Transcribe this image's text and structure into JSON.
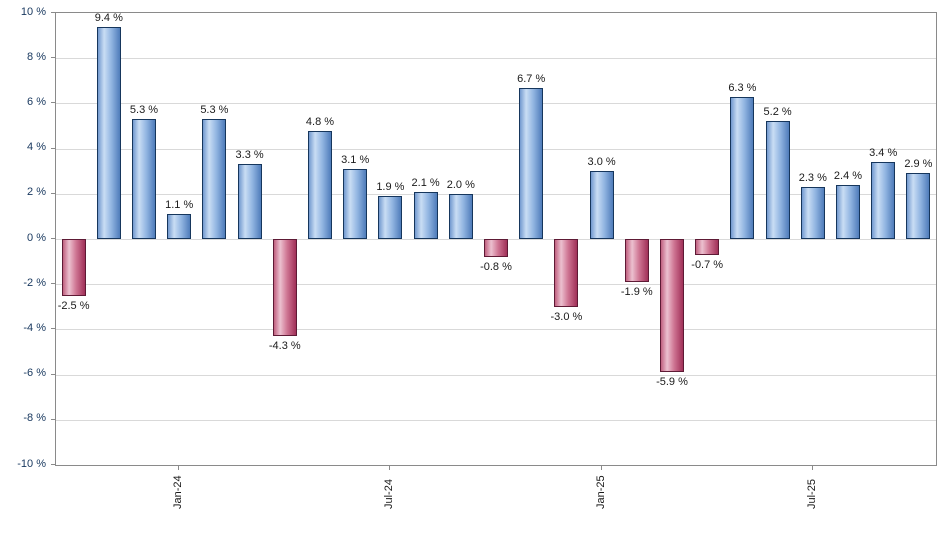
{
  "chart_data": {
    "type": "bar",
    "title": "",
    "xlabel": "",
    "ylabel": "",
    "grid": true,
    "legend": false,
    "y_axis": {
      "min": -10,
      "max": 10,
      "step": 2,
      "tick_labels": [
        "10 %",
        "8 %",
        "6 %",
        "4 %",
        "2 %",
        "0 %",
        "-2 %",
        "-4 %",
        "-6 %",
        "-8 %",
        "-10 %"
      ]
    },
    "x_axis": {
      "tick_labels": [
        {
          "bar_index": 3,
          "label": "Jan-24"
        },
        {
          "bar_index": 9,
          "label": "Jul-24"
        },
        {
          "bar_index": 15,
          "label": "Jan-25"
        },
        {
          "bar_index": 21,
          "label": "Jul-25"
        }
      ]
    },
    "bars": [
      {
        "value": -2.5,
        "label": "-2.5 %"
      },
      {
        "value": 9.4,
        "label": "9.4 %"
      },
      {
        "value": 5.3,
        "label": "5.3 %"
      },
      {
        "value": 1.1,
        "label": "1.1 %"
      },
      {
        "value": 5.3,
        "label": "5.3 %"
      },
      {
        "value": 3.3,
        "label": "3.3 %"
      },
      {
        "value": -4.3,
        "label": "-4.3 %"
      },
      {
        "value": 4.8,
        "label": "4.8 %"
      },
      {
        "value": 3.1,
        "label": "3.1 %"
      },
      {
        "value": 1.9,
        "label": "1.9 %"
      },
      {
        "value": 2.1,
        "label": "2.1 %"
      },
      {
        "value": 2.0,
        "label": "2.0 %"
      },
      {
        "value": -0.8,
        "label": "-0.8 %"
      },
      {
        "value": 6.7,
        "label": "6.7 %"
      },
      {
        "value": -3.0,
        "label": "-3.0 %"
      },
      {
        "value": 3.0,
        "label": "3.0 %"
      },
      {
        "value": -1.9,
        "label": "-1.9 %"
      },
      {
        "value": -5.9,
        "label": "-5.9 %"
      },
      {
        "value": -0.7,
        "label": "-0.7 %"
      },
      {
        "value": 6.3,
        "label": "6.3 %"
      },
      {
        "value": 5.2,
        "label": "5.2 %"
      },
      {
        "value": 2.3,
        "label": "2.3 %"
      },
      {
        "value": 2.4,
        "label": "2.4 %"
      },
      {
        "value": 3.4,
        "label": "3.4 %"
      },
      {
        "value": 2.9,
        "label": "2.9 %"
      }
    ],
    "colors": {
      "positive_gradient": [
        "#7299CF",
        "#C9DDF4",
        "#93B6E2",
        "#4F7CBA"
      ],
      "positive_border": "#16365C",
      "negative_gradient": [
        "#C06080",
        "#ECC0CF",
        "#CE7492",
        "#A03058"
      ],
      "negative_border": "#5E1A35",
      "gridline": "#D9D9D9",
      "plot_border": "#8A8A8A",
      "value_label_text": "#1A1A1A",
      "axis_label_text": "#17375E"
    }
  }
}
